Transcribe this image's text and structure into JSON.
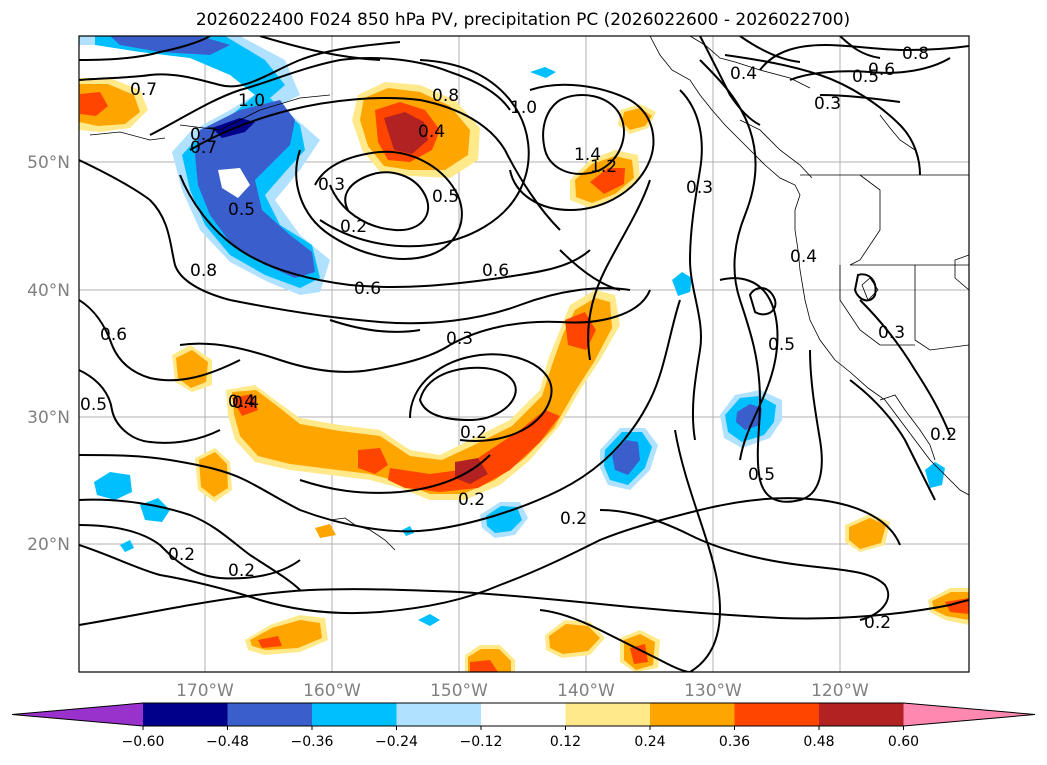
{
  "title": "2026022400 F024 850 hPa PV, precipitation PC (2026022600 - 2026022700)",
  "lat_labels": [
    "50°N",
    "40°N",
    "30°N",
    "20°N"
  ],
  "lon_labels": [
    "170°W",
    "160°W",
    "150°W",
    "140°W",
    "130°W",
    "120°W"
  ],
  "colorbar": {
    "ticks": [
      "−0.60",
      "−0.48",
      "−0.36",
      "−0.24",
      "−0.12",
      "0.12",
      "0.24",
      "0.36",
      "0.48",
      "0.60"
    ],
    "colors": [
      "#9932cc",
      "#00008b",
      "#3a5fcd",
      "#00bfff",
      "#b0e2ff",
      "#ffffff",
      "#ffe98a",
      "#ffa500",
      "#ff4500",
      "#b22222",
      "#ff88b0"
    ]
  },
  "contour_labels": {
    "l1": "0.7",
    "l2": "1.0",
    "l3": "0.8",
    "l4": "1.0",
    "l5": "0.4",
    "l6": "0.8",
    "l7": "0.5",
    "l8": "0.6",
    "l9": "0.7",
    "l10": "0.4",
    "l11": "0.3",
    "l12": "0.3",
    "l13": "0.2",
    "l14": "0.4",
    "l15": "0.5",
    "l16": "1.4",
    "l17": "1.2",
    "l18": "0.3",
    "l19": "0.5",
    "l20": "0.8",
    "l21": "0.6",
    "l22": "0.6",
    "l23": "0.4",
    "l24": "0.6",
    "l25": "0.3",
    "l26": "0.3",
    "l27": "0.5",
    "l28": "0.5",
    "l29": "0.4",
    "l30": "0.2",
    "l31": "0.2",
    "l32": "0.5",
    "l33": "0.2",
    "l34": "0.2",
    "l35": "0.2",
    "l36": "0.2",
    "l37": "0.2",
    "l38": "0.7"
  }
}
